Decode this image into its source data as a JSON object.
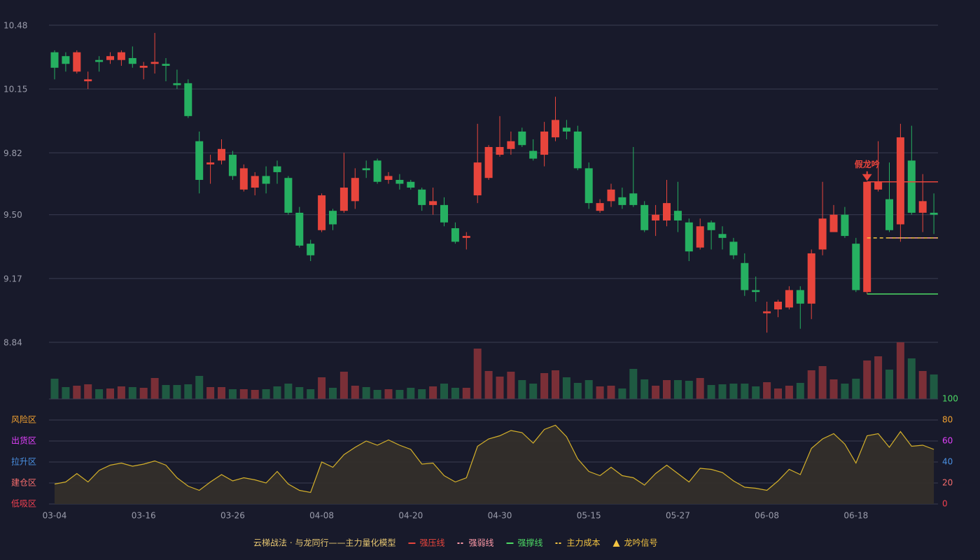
{
  "chart_data": [
    {
      "type": "candlestick",
      "categories": [
        "03-04",
        null,
        null,
        null,
        null,
        null,
        null,
        null,
        "03-16",
        null,
        null,
        null,
        null,
        null,
        null,
        null,
        "03-26",
        null,
        null,
        null,
        null,
        null,
        null,
        null,
        "04-08",
        null,
        null,
        null,
        null,
        null,
        null,
        null,
        "04-20",
        null,
        null,
        null,
        null,
        null,
        null,
        null,
        "04-30",
        null,
        null,
        null,
        null,
        null,
        null,
        null,
        "05-15",
        null,
        null,
        null,
        null,
        null,
        null,
        null,
        "05-27",
        null,
        null,
        null,
        null,
        null,
        null,
        null,
        "06-08",
        null,
        null,
        null,
        null,
        null,
        null,
        null,
        "06-18",
        null,
        null,
        null,
        null,
        null,
        null,
        null
      ],
      "open": [
        10.34,
        10.32,
        10.24,
        10.19,
        10.3,
        10.3,
        10.3,
        10.31,
        10.26,
        10.28,
        10.28,
        10.18,
        10.18,
        9.88,
        9.76,
        9.78,
        9.81,
        9.63,
        9.64,
        9.7,
        9.75,
        9.69,
        9.51,
        9.35,
        9.42,
        9.52,
        9.52,
        9.57,
        9.74,
        9.78,
        9.68,
        9.68,
        9.67,
        9.63,
        9.55,
        9.55,
        9.43,
        9.38,
        9.6,
        9.69,
        9.81,
        9.84,
        9.93,
        9.83,
        9.81,
        9.9,
        9.95,
        9.93,
        9.74,
        9.52,
        9.57,
        9.59,
        9.61,
        9.55,
        9.47,
        9.47,
        9.52,
        9.46,
        9.33,
        9.46,
        9.4,
        9.36,
        9.25,
        9.11,
        8.99,
        9.01,
        9.02,
        9.11,
        9.04,
        9.32,
        9.41,
        9.5,
        9.35,
        9.1,
        9.63,
        9.58,
        9.45,
        9.78,
        9.51,
        9.51
      ],
      "high": [
        10.35,
        10.34,
        10.35,
        10.24,
        10.32,
        10.34,
        10.35,
        10.37,
        10.29,
        10.44,
        10.31,
        10.25,
        10.2,
        9.93,
        9.81,
        9.89,
        9.83,
        9.76,
        9.72,
        9.75,
        9.78,
        9.7,
        9.54,
        9.37,
        9.61,
        9.53,
        9.82,
        9.74,
        9.78,
        9.79,
        9.72,
        9.71,
        9.68,
        9.64,
        9.64,
        9.59,
        9.46,
        9.41,
        9.97,
        9.86,
        10.01,
        9.93,
        9.95,
        9.89,
        9.98,
        10.11,
        9.99,
        9.96,
        9.77,
        9.58,
        9.66,
        9.64,
        9.85,
        9.57,
        9.55,
        9.68,
        9.67,
        9.48,
        9.48,
        9.47,
        9.44,
        9.38,
        9.3,
        9.18,
        9.05,
        9.06,
        9.13,
        9.13,
        9.32,
        9.67,
        9.55,
        9.54,
        9.38,
        9.67,
        9.88,
        9.77,
        9.97,
        9.96,
        9.71,
        9.61
      ],
      "low": [
        10.2,
        10.24,
        10.23,
        10.15,
        10.24,
        10.28,
        10.27,
        10.26,
        10.2,
        10.23,
        10.19,
        10.15,
        10.0,
        9.61,
        9.66,
        9.76,
        9.68,
        9.62,
        9.6,
        9.61,
        9.66,
        9.5,
        9.33,
        9.26,
        9.41,
        9.42,
        9.51,
        9.53,
        9.69,
        9.66,
        9.66,
        9.63,
        9.63,
        9.52,
        9.5,
        9.44,
        9.35,
        9.32,
        9.56,
        9.68,
        9.8,
        9.81,
        9.85,
        9.78,
        9.75,
        9.88,
        9.89,
        9.73,
        9.53,
        9.51,
        9.54,
        9.53,
        9.54,
        9.41,
        9.39,
        9.44,
        9.41,
        9.26,
        9.32,
        9.32,
        9.32,
        9.27,
        9.08,
        9.05,
        8.89,
        8.97,
        9.01,
        8.91,
        8.96,
        9.29,
        9.41,
        9.38,
        9.1,
        9.09,
        9.62,
        9.41,
        9.36,
        9.5,
        9.41,
        9.4
      ],
      "close": [
        10.26,
        10.28,
        10.34,
        10.2,
        10.29,
        10.32,
        10.34,
        10.28,
        10.27,
        10.29,
        10.27,
        10.17,
        10.01,
        9.68,
        9.77,
        9.84,
        9.7,
        9.74,
        9.7,
        9.66,
        9.72,
        9.51,
        9.34,
        9.29,
        9.6,
        9.45,
        9.64,
        9.69,
        9.73,
        9.67,
        9.7,
        9.66,
        9.64,
        9.55,
        9.57,
        9.46,
        9.36,
        9.39,
        9.77,
        9.85,
        9.85,
        9.88,
        9.86,
        9.79,
        9.93,
        9.99,
        9.93,
        9.74,
        9.56,
        9.56,
        9.63,
        9.55,
        9.55,
        9.42,
        9.5,
        9.56,
        9.47,
        9.31,
        9.44,
        9.42,
        9.38,
        9.29,
        9.11,
        9.1,
        9.0,
        9.05,
        9.11,
        9.04,
        9.3,
        9.48,
        9.5,
        9.39,
        9.11,
        9.67,
        9.67,
        9.42,
        9.9,
        9.51,
        9.57,
        9.5
      ],
      "ylim": [
        8.84,
        10.48
      ],
      "yticks": [
        10.48,
        10.15,
        9.82,
        {
          "value": 9.5,
          "label": "9.50"
        },
        9.17,
        8.84
      ],
      "grid": true,
      "up_color": "#e8453c",
      "down_color": "#26b061",
      "levels": [
        {
          "name": "强压线",
          "value": 9.67,
          "start": 73,
          "color": "#e8453c",
          "dashed": false
        },
        {
          "name": "强弱线",
          "value": 9.38,
          "start": 75,
          "color": "#ff9aa8",
          "dashed": true
        },
        {
          "name": "强撑线",
          "value": 9.09,
          "start": 73,
          "color": "#4cd964",
          "dashed": false
        },
        {
          "name": "主力成本",
          "value": 9.38,
          "start": 73,
          "color": "#f5c542",
          "dashed": true
        }
      ],
      "signal": {
        "name": "龙吟信号",
        "color": "#f5c542"
      },
      "annotations": [
        {
          "label": "假龙吟",
          "index": 73,
          "color": "#e8453c"
        }
      ],
      "legend_title": "云梯战法 · 与龙同行——主力量化模型"
    },
    {
      "type": "bar",
      "values": [
        29,
        17,
        19,
        21,
        14,
        15,
        18,
        17,
        16,
        30,
        20,
        20,
        21,
        33,
        17,
        17,
        14,
        14,
        13,
        14,
        18,
        22,
        17,
        14,
        31,
        16,
        39,
        19,
        17,
        13,
        14,
        13,
        16,
        14,
        18,
        22,
        16,
        16,
        72,
        40,
        32,
        39,
        27,
        22,
        37,
        41,
        31,
        23,
        27,
        18,
        19,
        15,
        43,
        28,
        19,
        27,
        27,
        26,
        30,
        20,
        21,
        22,
        22,
        18,
        24,
        15,
        19,
        23,
        41,
        47,
        28,
        22,
        29,
        55,
        61,
        42,
        81,
        58,
        40,
        35
      ],
      "up_color": "#7a2f37",
      "down_color": "#1f5a42"
    },
    {
      "type": "line",
      "values": [
        19,
        21,
        29,
        21,
        32,
        37,
        39,
        36,
        38,
        41,
        37,
        25,
        17,
        13,
        21,
        28,
        22,
        25,
        23,
        20,
        31,
        19,
        13,
        11,
        40,
        35,
        47,
        54,
        60,
        56,
        61,
        56,
        52,
        38,
        39,
        27,
        21,
        25,
        55,
        62,
        65,
        70,
        68,
        58,
        71,
        75,
        64,
        43,
        31,
        27,
        35,
        27,
        25,
        18,
        29,
        37,
        29,
        21,
        34,
        33,
        30,
        22,
        16,
        15,
        13,
        22,
        33,
        28,
        53,
        62,
        67,
        57,
        39,
        65,
        67,
        54,
        69,
        55,
        56,
        52
      ],
      "color": "#d4b02a",
      "fill": "#34302a",
      "ylim": [
        0,
        100
      ],
      "yticks": [
        0,
        20,
        40,
        60,
        80,
        100
      ],
      "ytick_colors": [
        "#f04050",
        "#f56c6c",
        "#4a90e2",
        "#e040fb",
        "#f0a030",
        "#4cd964"
      ],
      "zones": [
        {
          "value": 80,
          "label": "风险区",
          "color": "#f0a030"
        },
        {
          "value": 60,
          "label": "出货区",
          "color": "#e040fb"
        },
        {
          "value": 40,
          "label": "拉升区",
          "color": "#4a90e2"
        },
        {
          "value": 20,
          "label": "建仓区",
          "color": "#f56c6c"
        },
        {
          "value": 0,
          "label": "低吸区",
          "color": "#f04050"
        }
      ]
    }
  ]
}
